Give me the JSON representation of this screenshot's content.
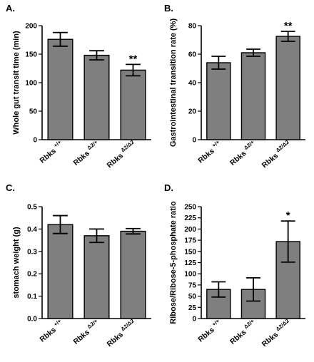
{
  "chart_data": [
    {
      "type": "bar",
      "panel": "A.",
      "ylabel": "Whole gut transit time (min)",
      "ylim": [
        0,
        200
      ],
      "yticks": [
        "0",
        "50",
        "100",
        "150",
        "200"
      ],
      "categories": [
        {
          "base": "Rbks",
          "sup": "+/+"
        },
        {
          "base": "Rbks",
          "sup": "Δ2/+"
        },
        {
          "base": "Rbks",
          "sup": "Δ2/Δ2"
        }
      ],
      "values": [
        176,
        148,
        122
      ],
      "errors": [
        12,
        8,
        10
      ],
      "significance": [
        "",
        "",
        "**"
      ]
    },
    {
      "type": "bar",
      "panel": "B.",
      "ylabel": "Gastrointestinal transition rate (%)",
      "ylim": [
        0,
        80
      ],
      "yticks": [
        "0",
        "20",
        "40",
        "60",
        "80"
      ],
      "categories": [
        {
          "base": "Rbks",
          "sup": "+/+"
        },
        {
          "base": "Rbks",
          "sup": "Δ2/+"
        },
        {
          "base": "Rbks",
          "sup": "Δ2/Δ2"
        }
      ],
      "values": [
        54,
        61,
        72.5
      ],
      "errors": [
        4.5,
        2.5,
        3.5
      ],
      "significance": [
        "",
        "",
        "**"
      ]
    },
    {
      "type": "bar",
      "panel": "C.",
      "ylabel": "stomach weight (g)",
      "ylim": [
        0,
        0.5
      ],
      "yticks": [
        "0.0",
        "0.1",
        "0.2",
        "0.3",
        "0.4",
        "0.5"
      ],
      "categories": [
        {
          "base": "Rbks",
          "sup": "+/+"
        },
        {
          "base": "Rbks",
          "sup": "Δ2/+"
        },
        {
          "base": "Rbks",
          "sup": "Δ2/Δ2"
        }
      ],
      "values": [
        0.42,
        0.37,
        0.39
      ],
      "errors": [
        0.04,
        0.03,
        0.012
      ],
      "significance": [
        "",
        "",
        ""
      ]
    },
    {
      "type": "bar",
      "panel": "D.",
      "ylabel": "Ribose/Ribose-5-phosphate ratio",
      "ylim": [
        0,
        250
      ],
      "yticks": [
        "0",
        "25",
        "50",
        "75",
        "100",
        "125",
        "150",
        "175",
        "200",
        "225",
        "250"
      ],
      "categories": [
        {
          "base": "Rbks",
          "sup": "+/+"
        },
        {
          "base": "Rbks",
          "sup": "Δ2/+"
        },
        {
          "base": "Rbks",
          "sup": "Δ2/Δ2"
        }
      ],
      "values": [
        65,
        65,
        172
      ],
      "errors": [
        17,
        26,
        46
      ],
      "significance": [
        "",
        "",
        "*"
      ]
    }
  ]
}
